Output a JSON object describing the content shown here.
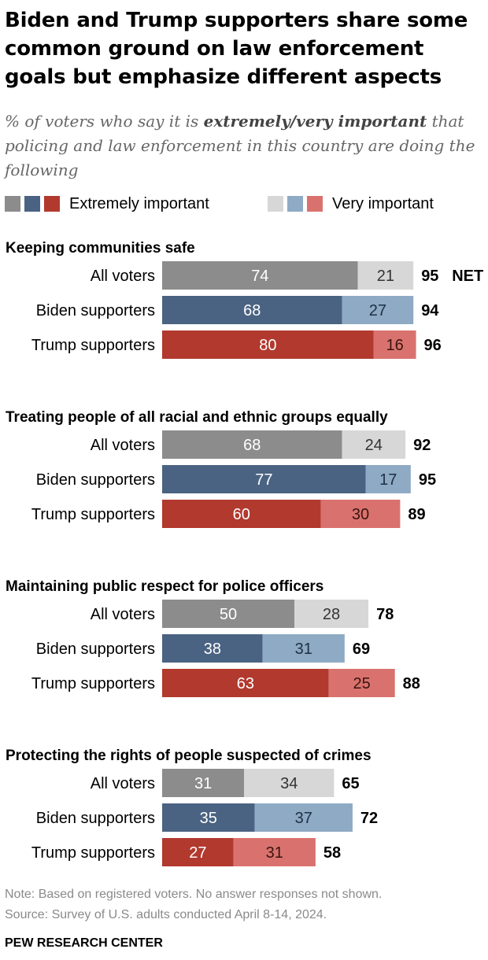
{
  "header": {
    "title": "Biden and Trump supporters share some common ground on law enforcement goals but emphasize different aspects",
    "subtitle_pre": "% of voters who say it is ",
    "subtitle_bold": "extremely/very important",
    "subtitle_post": " that policing and law enforcement in this country are doing the following"
  },
  "legend": {
    "extremely_label": "Extremely important",
    "very_label": "Very important"
  },
  "colors": {
    "all_voters": [
      "#8c8c8c",
      "#d7d7d7"
    ],
    "biden": [
      "#4a6382",
      "#8eaac4"
    ],
    "trump": [
      "#b2392e",
      "#d9726e"
    ]
  },
  "chart_data": {
    "type": "bar",
    "orientation": "horizontal",
    "stacked": true,
    "net_suffix": "NET",
    "series": [
      {
        "name": "Extremely important"
      },
      {
        "name": "Very important"
      }
    ],
    "groups": [
      {
        "label": "Keeping communities safe",
        "rows": [
          {
            "label": "All voters",
            "key": "all_voters",
            "extremely": 74,
            "very": 21,
            "net": 95
          },
          {
            "label": "Biden supporters",
            "key": "biden",
            "extremely": 68,
            "very": 27,
            "net": 94
          },
          {
            "label": "Trump supporters",
            "key": "trump",
            "extremely": 80,
            "very": 16,
            "net": 96
          }
        ]
      },
      {
        "label": "Treating people of all racial and ethnic groups equally",
        "rows": [
          {
            "label": "All voters",
            "key": "all_voters",
            "extremely": 68,
            "very": 24,
            "net": 92
          },
          {
            "label": "Biden supporters",
            "key": "biden",
            "extremely": 77,
            "very": 17,
            "net": 95
          },
          {
            "label": "Trump supporters",
            "key": "trump",
            "extremely": 60,
            "very": 30,
            "net": 89
          }
        ]
      },
      {
        "label": "Maintaining public respect for police officers",
        "rows": [
          {
            "label": "All voters",
            "key": "all_voters",
            "extremely": 50,
            "very": 28,
            "net": 78
          },
          {
            "label": "Biden supporters",
            "key": "biden",
            "extremely": 38,
            "very": 31,
            "net": 69
          },
          {
            "label": "Trump supporters",
            "key": "trump",
            "extremely": 63,
            "very": 25,
            "net": 88
          }
        ]
      },
      {
        "label": "Protecting the rights of people suspected of crimes",
        "rows": [
          {
            "label": "All voters",
            "key": "all_voters",
            "extremely": 31,
            "very": 34,
            "net": 65
          },
          {
            "label": "Biden supporters",
            "key": "biden",
            "extremely": 35,
            "very": 37,
            "net": 72
          },
          {
            "label": "Trump supporters",
            "key": "trump",
            "extremely": 27,
            "very": 31,
            "net": 58
          }
        ]
      }
    ]
  },
  "footer": {
    "note": "Note: Based on registered voters. No answer responses not shown.",
    "source": "Source: Survey of U.S. adults conducted April 8-14, 2024.",
    "brand": "PEW RESEARCH CENTER"
  }
}
